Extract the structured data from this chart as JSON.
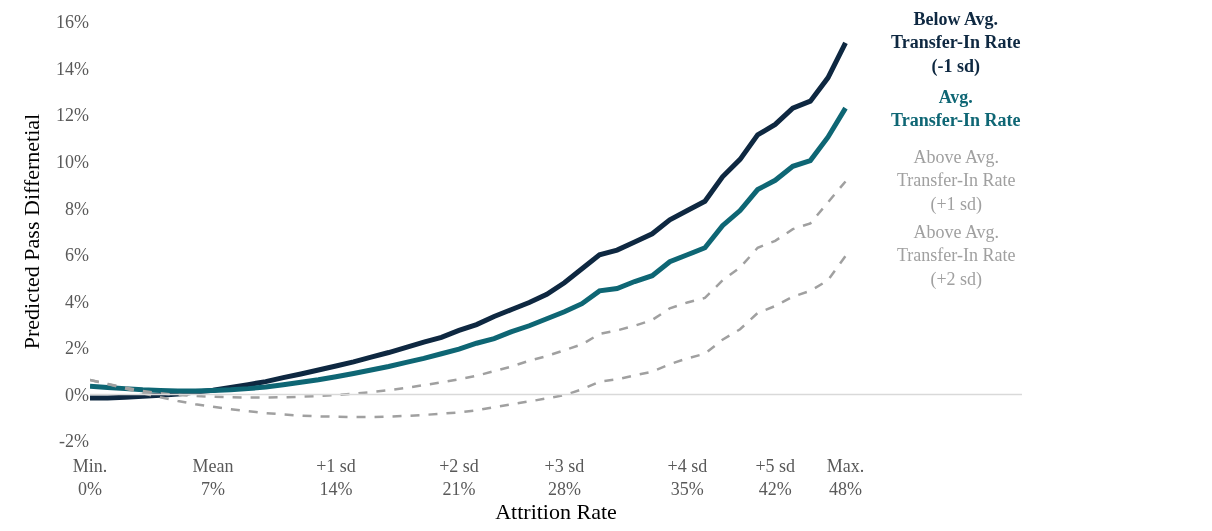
{
  "chart_data": {
    "type": "line",
    "xlabel": "Attrition Rate",
    "ylabel": "Predicted Pass Differnetial",
    "categories": [
      "Min.\n0%",
      null,
      null,
      null,
      null,
      null,
      null,
      "Mean\n7%",
      null,
      null,
      null,
      null,
      null,
      null,
      "+1 sd\n14%",
      null,
      null,
      null,
      null,
      null,
      null,
      "+2 sd\n21%",
      null,
      null,
      null,
      null,
      null,
      "+3 sd\n28%",
      null,
      null,
      null,
      null,
      null,
      null,
      "+4 sd\n35%",
      null,
      null,
      null,
      null,
      "+5 sd\n42%",
      null,
      null,
      null,
      "Max.\n48%"
    ],
    "ylim": [
      -2,
      16
    ],
    "yticks": [
      {
        "value": -2,
        "label": "-2%"
      },
      {
        "value": 0,
        "label": "0%"
      },
      {
        "value": 2,
        "label": "2%"
      },
      {
        "value": 4,
        "label": "4%"
      },
      {
        "value": 6,
        "label": "6%"
      },
      {
        "value": 8,
        "label": "8%"
      },
      {
        "value": 10,
        "label": "10%"
      },
      {
        "value": 12,
        "label": "12%"
      },
      {
        "value": 14,
        "label": "14%"
      },
      {
        "value": 16,
        "label": "16%"
      }
    ],
    "grid": false,
    "legend": false,
    "marker": "none",
    "ref_lines": [
      {
        "axis": "y",
        "value": 0,
        "color": "#d9d9d9"
      }
    ],
    "series": [
      {
        "name": "Below Avg.\nTransfer-In Rate\n(-1 sd)",
        "color": "#0e2841",
        "line_style": "solid",
        "values": [
          -0.15,
          -0.15,
          -0.12,
          -0.08,
          -0.04,
          0.02,
          0.1,
          0.18,
          0.3,
          0.42,
          0.55,
          0.72,
          0.88,
          1.05,
          1.22,
          1.4,
          1.6,
          1.8,
          2.02,
          2.25,
          2.45,
          2.75,
          3.0,
          3.35,
          3.65,
          3.95,
          4.3,
          4.8,
          5.4,
          6.0,
          6.2,
          6.55,
          6.9,
          7.5,
          7.9,
          8.3,
          9.35,
          10.1,
          11.15,
          11.6,
          12.3,
          12.6,
          13.6,
          15.1
        ]
      },
      {
        "name": "Avg.\nTransfer-In Rate",
        "color": "#0e6674",
        "line_style": "solid",
        "values": [
          0.35,
          0.3,
          0.25,
          0.2,
          0.17,
          0.15,
          0.15,
          0.17,
          0.2,
          0.25,
          0.32,
          0.42,
          0.52,
          0.63,
          0.76,
          0.9,
          1.05,
          1.2,
          1.38,
          1.55,
          1.75,
          1.95,
          2.2,
          2.4,
          2.7,
          2.95,
          3.25,
          3.55,
          3.9,
          4.45,
          4.55,
          4.85,
          5.1,
          5.7,
          6.0,
          6.3,
          7.25,
          7.9,
          8.8,
          9.2,
          9.8,
          10.05,
          11.05,
          12.3
        ]
      },
      {
        "name": "Above Avg.\nTransfer-In Rate\n(+1 sd)",
        "color": "#a0a0a0",
        "line_style": "dashed",
        "values": [
          0.62,
          0.45,
          0.3,
          0.15,
          0.05,
          -0.02,
          -0.06,
          -0.1,
          -0.12,
          -0.13,
          -0.13,
          -0.12,
          -0.1,
          -0.07,
          -0.03,
          0.03,
          0.1,
          0.18,
          0.28,
          0.4,
          0.52,
          0.65,
          0.8,
          1.0,
          1.2,
          1.45,
          1.65,
          1.9,
          2.15,
          2.6,
          2.75,
          2.95,
          3.2,
          3.7,
          3.95,
          4.15,
          4.9,
          5.45,
          6.3,
          6.6,
          7.1,
          7.35,
          8.25,
          9.15
        ]
      },
      {
        "name": "Above Avg.\nTransfer-In Rate\n(+2 sd)",
        "color": "#a0a0a0",
        "line_style": "dashed",
        "values": [
          0.62,
          0.45,
          0.25,
          0.05,
          -0.12,
          -0.28,
          -0.42,
          -0.53,
          -0.63,
          -0.72,
          -0.8,
          -0.86,
          -0.91,
          -0.94,
          -0.96,
          -0.97,
          -0.97,
          -0.95,
          -0.92,
          -0.88,
          -0.83,
          -0.77,
          -0.68,
          -0.55,
          -0.42,
          -0.3,
          -0.17,
          -0.03,
          0.22,
          0.55,
          0.65,
          0.82,
          0.98,
          1.3,
          1.55,
          1.75,
          2.35,
          2.8,
          3.5,
          3.8,
          4.2,
          4.45,
          4.9,
          5.95
        ]
      }
    ]
  }
}
